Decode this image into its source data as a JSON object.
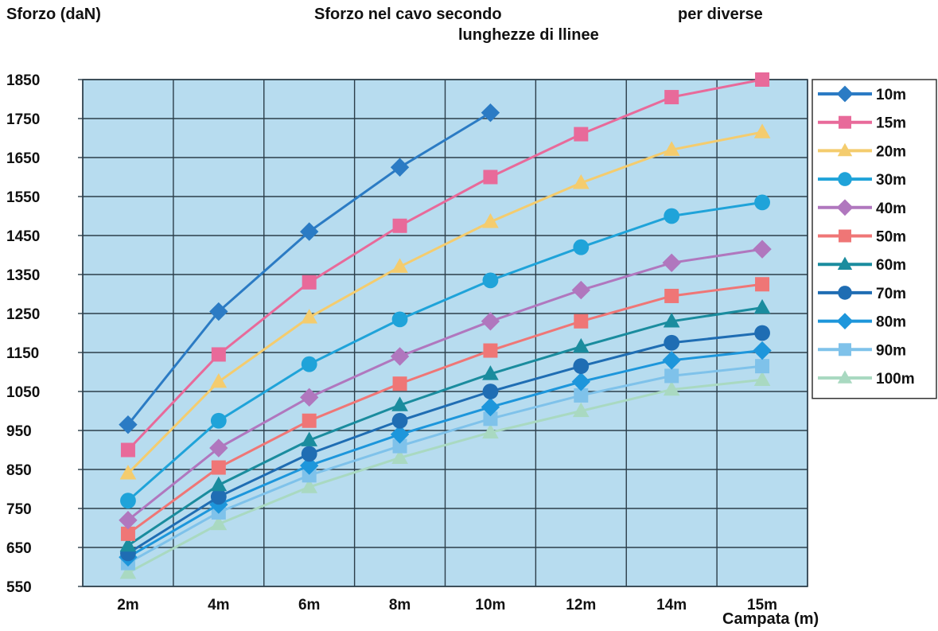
{
  "chart_data": {
    "type": "line",
    "title_line1": "Sforzo nel cavo secondo",
    "title_line1b": "per diverse",
    "title_line2": "lunghezze di llinee",
    "ylabel": "Sforzo (daN)",
    "xlabel": "Campata (m)",
    "categories": [
      "2m",
      "4m",
      "6m",
      "8m",
      "10m",
      "12m",
      "14m",
      "15m"
    ],
    "ylim": [
      550,
      1850
    ],
    "yticks": [
      1850,
      1750,
      1650,
      1550,
      1450,
      1350,
      1250,
      1150,
      1050,
      950,
      850,
      750,
      650,
      550
    ],
    "grid": true,
    "legend_position": "right",
    "plot_background": "#b7dcef",
    "series": [
      {
        "name": "10m",
        "color": "#2b7bc4",
        "marker": "diamond",
        "values": [
          965,
          1255,
          1460,
          1625,
          1765,
          null,
          null,
          null
        ]
      },
      {
        "name": "15m",
        "color": "#e86a9a",
        "marker": "square",
        "values": [
          900,
          1145,
          1330,
          1475,
          1600,
          1710,
          1805,
          1850
        ]
      },
      {
        "name": "20m",
        "color": "#f4cc6e",
        "marker": "triangle",
        "values": [
          840,
          1075,
          1240,
          1370,
          1485,
          1585,
          1670,
          1715
        ]
      },
      {
        "name": "30m",
        "color": "#1fa3d9",
        "marker": "circle",
        "values": [
          770,
          975,
          1120,
          1235,
          1335,
          1420,
          1500,
          1535
        ]
      },
      {
        "name": "40m",
        "color": "#b077be",
        "marker": "diamond",
        "values": [
          720,
          905,
          1035,
          1140,
          1230,
          1310,
          1380,
          1415
        ]
      },
      {
        "name": "50m",
        "color": "#ef7676",
        "marker": "square",
        "values": [
          685,
          855,
          975,
          1070,
          1155,
          1230,
          1295,
          1325
        ]
      },
      {
        "name": "60m",
        "color": "#1a8c9e",
        "marker": "triangle",
        "values": [
          655,
          810,
          925,
          1015,
          1095,
          1165,
          1230,
          1265
        ]
      },
      {
        "name": "70m",
        "color": "#1f6db3",
        "marker": "circle",
        "values": [
          635,
          780,
          890,
          975,
          1050,
          1115,
          1175,
          1200
        ]
      },
      {
        "name": "80m",
        "color": "#1d96db",
        "marker": "diamond",
        "values": [
          625,
          760,
          860,
          940,
          1010,
          1075,
          1130,
          1155
        ]
      },
      {
        "name": "90m",
        "color": "#7fc2ea",
        "marker": "square",
        "values": [
          610,
          740,
          835,
          910,
          980,
          1040,
          1090,
          1115
        ]
      },
      {
        "name": "100m",
        "color": "#a9d9c1",
        "marker": "triangle",
        "values": [
          585,
          710,
          805,
          880,
          945,
          1000,
          1055,
          1080
        ]
      }
    ]
  }
}
